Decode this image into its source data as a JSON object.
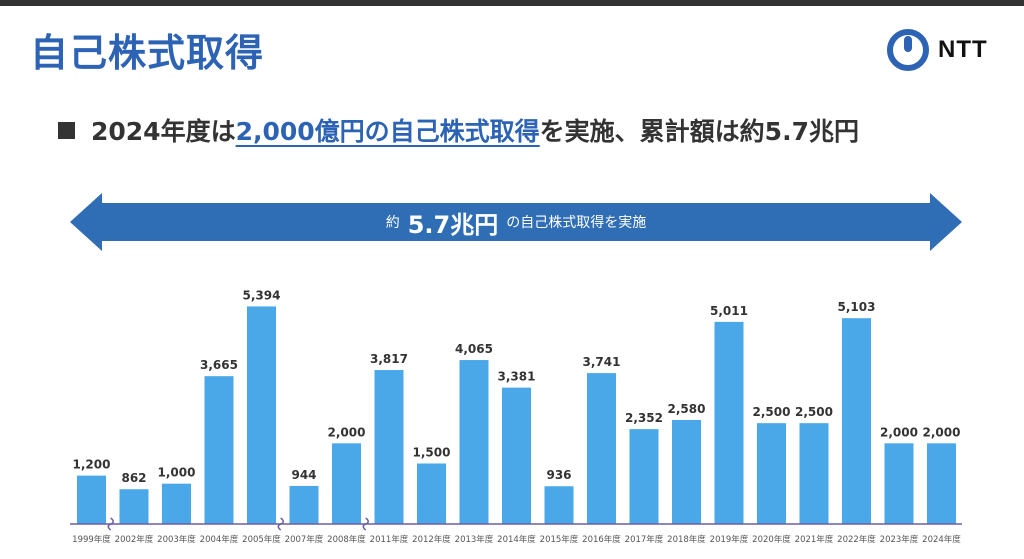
{
  "page": {
    "title": "自己株式取得",
    "logo_text": "NTT",
    "headline": {
      "prefix": "2024年度は",
      "highlight": "2,000億円の自己株式取得",
      "suffix": "を実施、累計額は約5.7兆円"
    },
    "banner": {
      "pre": "約",
      "amount": "5.7兆円",
      "post": "の自己株式取得を実施"
    }
  },
  "colors": {
    "title": "#2d63b4",
    "banner": "#2f6db5",
    "bar": "#4aa8e8",
    "axis": "#6b5fa5",
    "logo": "#2d63b4"
  },
  "chart_data": {
    "type": "bar",
    "title": "",
    "xlabel": "",
    "ylabel": "",
    "ylim": [
      0,
      6000
    ],
    "grid": false,
    "legend": "none",
    "categories": [
      "1999年度",
      "2002年度",
      "2003年度",
      "2004年度",
      "2005年度",
      "2007年度",
      "2008年度",
      "2011年度",
      "2012年度",
      "2013年度",
      "2014年度",
      "2015年度",
      "2016年度",
      "2017年度",
      "2018年度",
      "2019年度",
      "2020年度",
      "2021年度",
      "2022年度",
      "2023年度",
      "2024年度"
    ],
    "values": [
      1200,
      862,
      1000,
      3665,
      5394,
      944,
      2000,
      3817,
      1500,
      4065,
      3381,
      936,
      3741,
      2352,
      2580,
      5011,
      2500,
      2500,
      5103,
      2000,
      2000
    ],
    "value_labels": [
      "1,200",
      "862",
      "1,000",
      "3,665",
      "5,394",
      "944",
      "2,000",
      "3,817",
      "1,500",
      "4,065",
      "3,381",
      "936",
      "3,741",
      "2,352",
      "2,580",
      "5,011",
      "2,500",
      "2,500",
      "5,103",
      "2,000",
      "2,000"
    ],
    "axis_breaks_after": [
      "1999年度",
      "2005年度",
      "2008年度"
    ]
  }
}
